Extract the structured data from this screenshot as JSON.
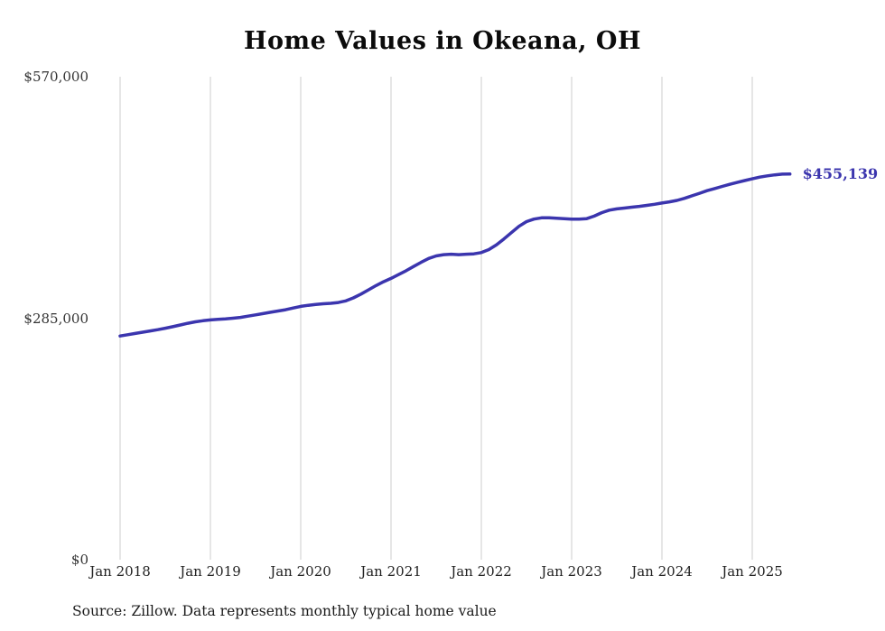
{
  "title": "Home Values in Okeana, OH",
  "end_label": "$455,139",
  "source_note": "Source: Zillow. Data represents monthly typical home value",
  "colors": {
    "line": "#3b35ae",
    "grid": "#cccccc",
    "end_label": "#3b35ae"
  },
  "chart_data": {
    "type": "line",
    "title": "Home Values in Okeana, OH",
    "xlabel": "",
    "ylabel": "",
    "ylim": [
      0,
      570000
    ],
    "grid": "vertical-only",
    "legend_position": "none",
    "x_start_month": "Jan 2018",
    "x_tick_labels": [
      "Jan 2018",
      "Jan 2019",
      "Jan 2020",
      "Jan 2021",
      "Jan 2022",
      "Jan 2023",
      "Jan 2024",
      "Jan 2025"
    ],
    "y_ticks": [
      {
        "value": 0,
        "label": "$0"
      },
      {
        "value": 285000,
        "label": "$285,000"
      },
      {
        "value": 570000,
        "label": "$570,000"
      }
    ],
    "final_value": 455139,
    "series": [
      {
        "name": "Monthly typical home value",
        "values": [
          264000,
          265500,
          267000,
          268500,
          270000,
          271500,
          273200,
          275000,
          277000,
          279000,
          280700,
          282000,
          283000,
          283600,
          284200,
          285000,
          286000,
          287400,
          288900,
          290400,
          292000,
          293500,
          295000,
          297000,
          299000,
          300200,
          301200,
          302000,
          302600,
          303500,
          305500,
          309000,
          313500,
          318500,
          323500,
          328000,
          332000,
          336500,
          341000,
          346000,
          351000,
          355500,
          358500,
          360000,
          360500,
          360000,
          360500,
          361000,
          362500,
          366000,
          371500,
          378500,
          386000,
          393500,
          399000,
          402000,
          403500,
          403500,
          403000,
          402500,
          402000,
          402000,
          402500,
          405500,
          409500,
          412500,
          414000,
          415000,
          416000,
          417000,
          418200,
          419500,
          421000,
          422300,
          424000,
          426500,
          429500,
          432500,
          435500,
          438000,
          440500,
          443000,
          445200,
          447500,
          449500,
          451500,
          453000,
          454200,
          455000,
          455139
        ]
      }
    ]
  }
}
